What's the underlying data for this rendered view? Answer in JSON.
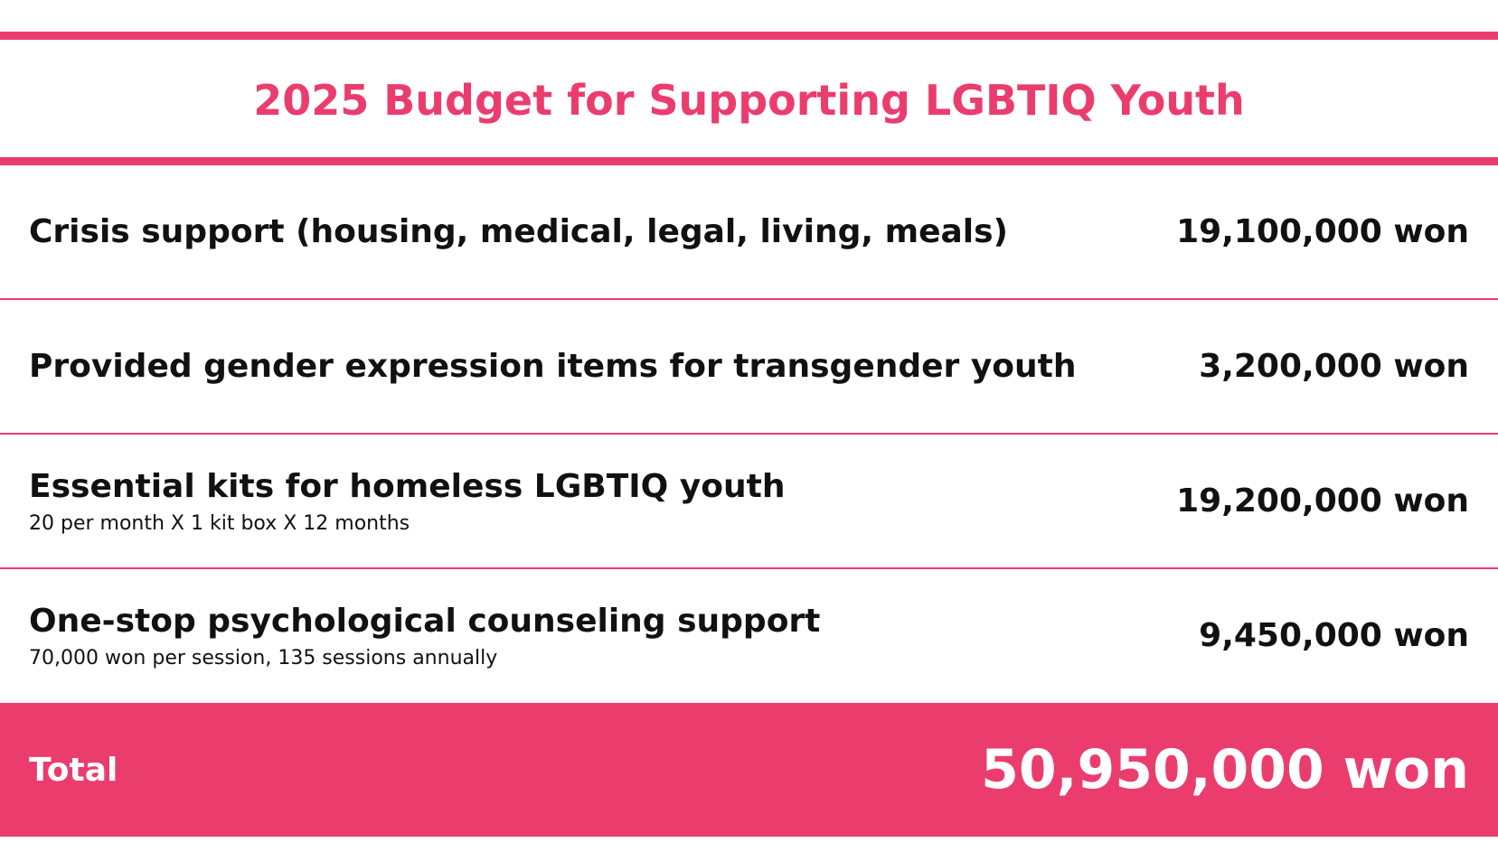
{
  "header": {
    "title": "2025 Budget for Supporting LGBTIQ Youth"
  },
  "table": {
    "rows": [
      {
        "label": "Crisis support (housing, medical, legal, living, meals)",
        "amount": "19,100,000 won"
      },
      {
        "label": "Provided gender expression items for transgender youth",
        "amount": "3,200,000 won"
      },
      {
        "label": "Essential kits for homeless LGBTIQ youth",
        "note": "20 per month X 1 kit box X 12 months",
        "amount": "19,200,000 won"
      },
      {
        "label": "One-stop psychological counseling support",
        "note": "70,000 won per session, 135 sessions annually",
        "amount": "9,450,000 won"
      }
    ]
  },
  "total": {
    "label": "Total",
    "amount": "50,950,000 won"
  }
}
